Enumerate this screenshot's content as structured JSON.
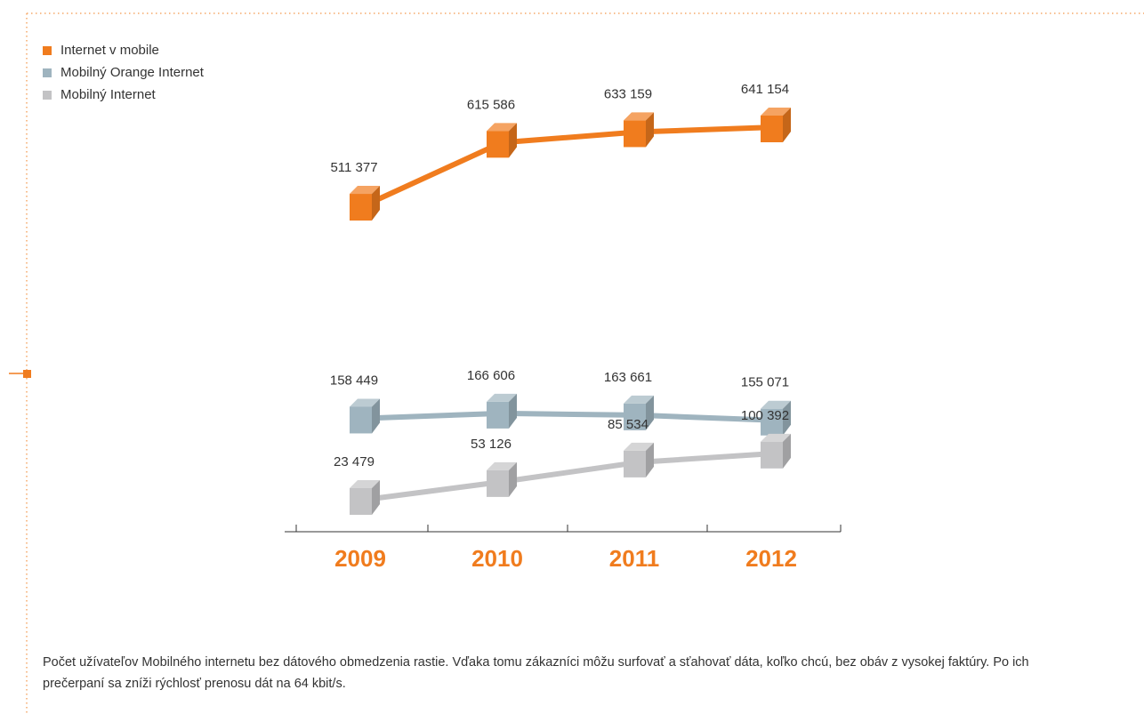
{
  "chart_data": {
    "type": "line",
    "categories": [
      "2009",
      "2010",
      "2011",
      "2012"
    ],
    "series": [
      {
        "name": "Internet v mobile",
        "color": "#f07c1e",
        "values": [
          511377,
          615586,
          633159,
          641154
        ],
        "value_labels": [
          "511 377",
          "615 586",
          "633 159",
          "641 154"
        ]
      },
      {
        "name": "Mobilný Orange Internet",
        "color": "#9fb4bf",
        "values": [
          158449,
          166606,
          163661,
          155071
        ],
        "value_labels": [
          "158 449",
          "166 606",
          "163 661",
          "155 071"
        ]
      },
      {
        "name": "Mobilný Internet",
        "color": "#c3c3c5",
        "values": [
          23479,
          53126,
          85534,
          100392
        ],
        "value_labels": [
          "23 479",
          "53 126",
          "85 534",
          "100 392"
        ]
      }
    ],
    "legend": "top-left",
    "note": "Počet užívateľov Mobilného internetu bez dátového obmedzenia rastie. Vďaka tomu zákazníci môžu surfovať a sťahovať dáta, koľko chcú, bez obáv z vysokej faktúry. Po ich prečerpaní sa zníži rýchlosť prenosu dát na 64 kbit/s."
  }
}
